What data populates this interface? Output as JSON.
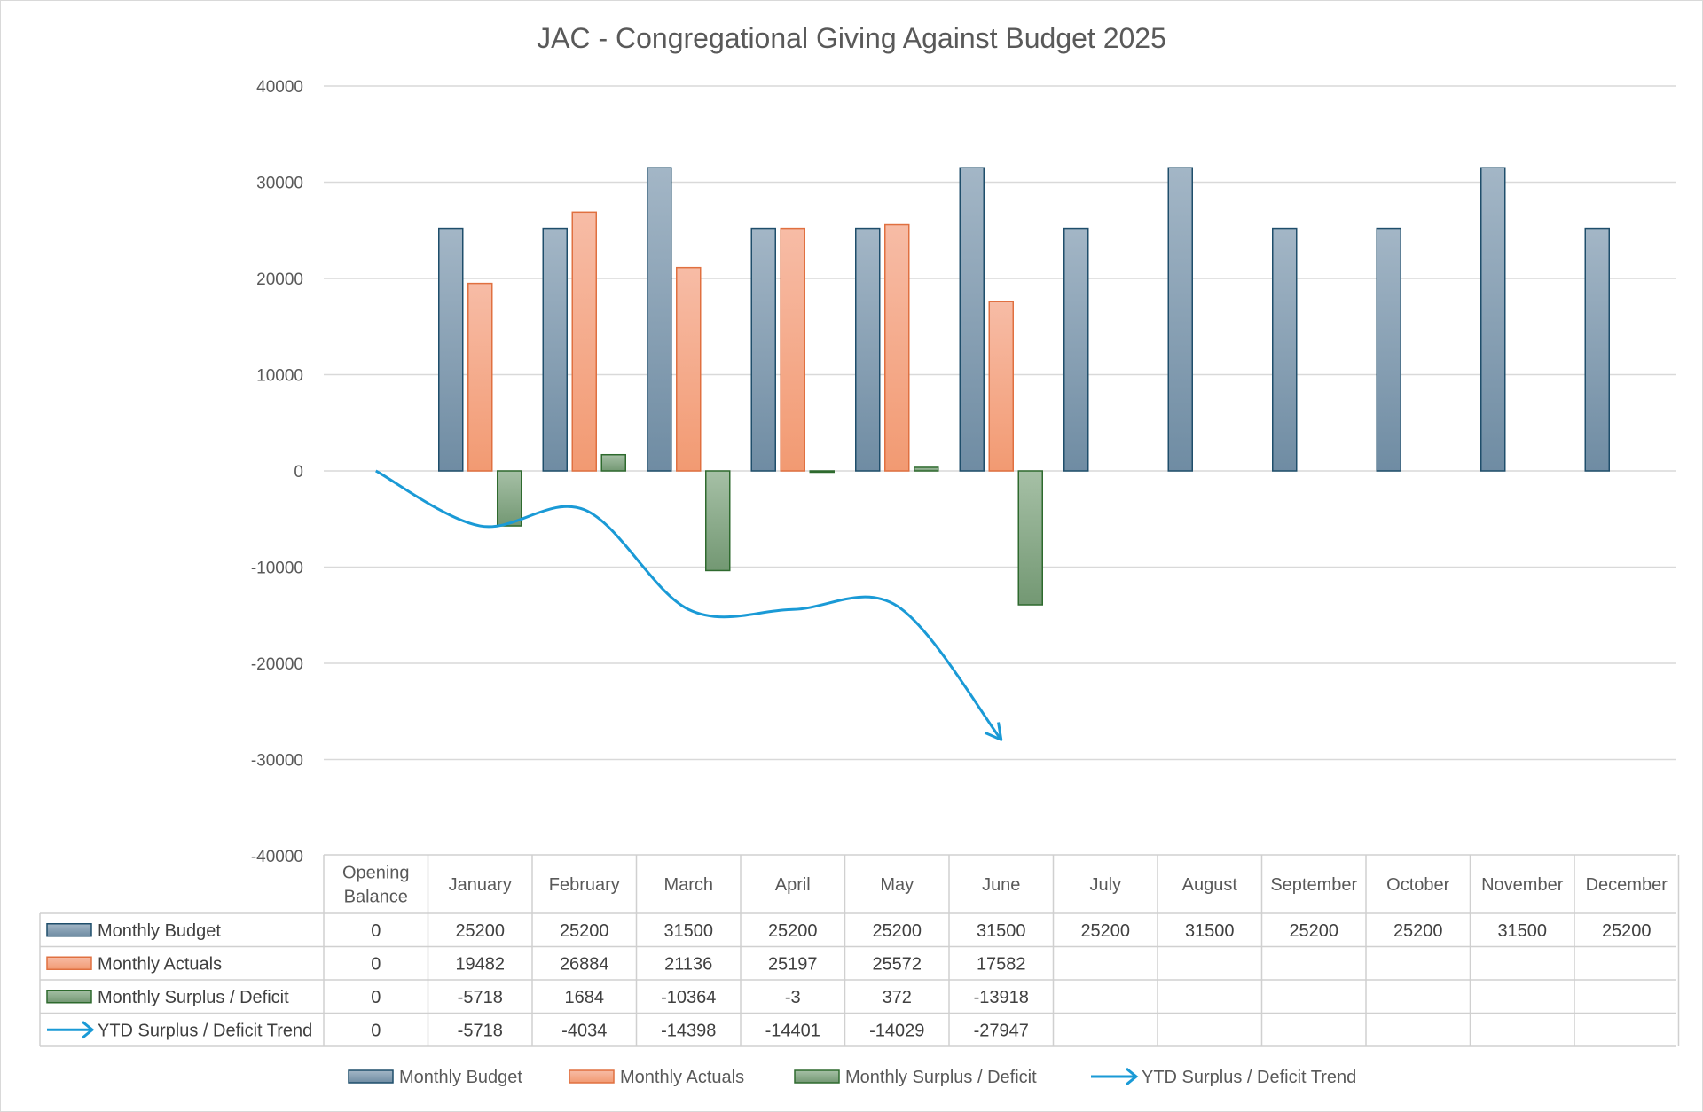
{
  "chart_data": {
    "type": "bar",
    "title": "JAC - Congregational Giving Against Budget 2025",
    "categories": [
      "Opening Balance",
      "January",
      "February",
      "March",
      "April",
      "May",
      "June",
      "July",
      "August",
      "September",
      "October",
      "November",
      "December"
    ],
    "category_lines": [
      [
        "Opening",
        "Balance"
      ],
      [
        "January"
      ],
      [
        "February"
      ],
      [
        "March"
      ],
      [
        "April"
      ],
      [
        "May"
      ],
      [
        "June"
      ],
      [
        "July"
      ],
      [
        "August"
      ],
      [
        "September"
      ],
      [
        "October"
      ],
      [
        "November"
      ],
      [
        "December"
      ]
    ],
    "ylim": [
      -40000,
      40000
    ],
    "yticks": [
      40000,
      30000,
      20000,
      10000,
      0,
      -10000,
      -20000,
      -30000,
      -40000
    ],
    "grid": true,
    "legend_position": "bottom",
    "data_table": true,
    "series": [
      {
        "name": "Monthly Budget",
        "kind": "bar",
        "color": "#7f9bb0",
        "stroke": "#1f4e6b",
        "values": [
          0,
          25200,
          25200,
          31500,
          25200,
          25200,
          31500,
          25200,
          31500,
          25200,
          25200,
          31500,
          25200
        ]
      },
      {
        "name": "Monthly Actuals",
        "kind": "bar",
        "color": "#f4a582",
        "stroke": "#e07040",
        "values": [
          0,
          19482,
          26884,
          21136,
          25197,
          25572,
          17582,
          null,
          null,
          null,
          null,
          null,
          null
        ]
      },
      {
        "name": "Monthly Surplus / Deficit",
        "kind": "bar",
        "color": "#8aab8a",
        "stroke": "#2e6a2e",
        "values": [
          0,
          -5718,
          1684,
          -10364,
          -3,
          372,
          -13918,
          null,
          null,
          null,
          null,
          null,
          null
        ]
      },
      {
        "name": "YTD Surplus / Deficit Trend",
        "kind": "line-arrow",
        "color": "#1a9ad6",
        "values": [
          0,
          -5718,
          -4034,
          -14398,
          -14401,
          -14029,
          -27947,
          null,
          null,
          null,
          null,
          null,
          null
        ]
      }
    ]
  }
}
